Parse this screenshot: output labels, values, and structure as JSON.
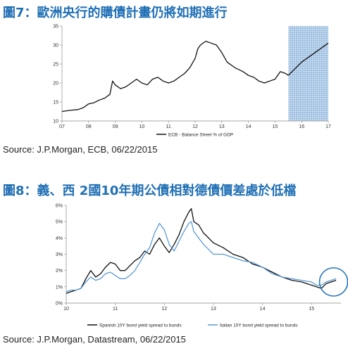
{
  "titles": {
    "chart1": "圖7：歐洲央行的購債計畫仍將如期進行",
    "chart2": "圖8：義、西 2國10年期公債相對德債價差處於低檔"
  },
  "sources": {
    "chart1": "Source: J.P.Morgan, ECB, 06/22/2015",
    "chart2": "Source: J.P.Morgan, Datastream, 06/22/2015"
  },
  "colors": {
    "title": "#1f6fb5",
    "line_black": "#111111",
    "line_blue": "#5b9bd5",
    "forecast_shade": "#9dbfe3",
    "circle": "#2b78b8"
  },
  "chart_data": [
    {
      "type": "line",
      "title": "",
      "xlabel": "",
      "ylabel": "",
      "x_ticks": [
        "07",
        "08",
        "09",
        "10",
        "11",
        "12",
        "13",
        "14",
        "15",
        "16",
        "17"
      ],
      "y_ticks": [
        "10",
        "15",
        "20",
        "25",
        "30",
        "35"
      ],
      "xlim": [
        2007.0,
        2017.0
      ],
      "ylim": [
        10,
        35
      ],
      "grid": false,
      "forecast_shaded_from": 2015.5,
      "legend": {
        "placement": "bottom",
        "entries": [
          "ECB - Balance Sheet % of GDP"
        ]
      },
      "series": [
        {
          "name": "ECB - Balance Sheet % of GDP",
          "style": "solid",
          "x": [
            2007.0,
            2007.3,
            2007.6,
            2007.8,
            2008.0,
            2008.2,
            2008.4,
            2008.6,
            2008.8,
            2008.9,
            2009.0,
            2009.2,
            2009.4,
            2009.6,
            2009.8,
            2010.0,
            2010.2,
            2010.4,
            2010.6,
            2010.8,
            2011.0,
            2011.2,
            2011.4,
            2011.6,
            2011.8,
            2012.0,
            2012.1,
            2012.2,
            2012.4,
            2012.6,
            2012.8,
            2013.0,
            2013.2,
            2013.5,
            2013.8,
            2014.0,
            2014.2,
            2014.4,
            2014.6,
            2014.8,
            2015.0,
            2015.2,
            2015.4,
            2015.5
          ],
          "values": [
            12.5,
            12.8,
            13.0,
            13.5,
            14.5,
            14.8,
            15.5,
            16.0,
            17.0,
            20.5,
            19.5,
            18.5,
            19.0,
            20.0,
            21.0,
            20.0,
            19.5,
            21.0,
            21.5,
            20.5,
            20.0,
            20.5,
            21.5,
            22.5,
            24.0,
            26.5,
            29.0,
            30.0,
            31.0,
            30.5,
            30.0,
            28.0,
            25.5,
            24.0,
            23.0,
            22.0,
            21.5,
            20.5,
            20.0,
            20.5,
            21.0,
            23.0,
            22.5,
            22.0
          ]
        },
        {
          "name": "",
          "style": "forecast",
          "x": [
            2015.5,
            2016.0,
            2016.5,
            2017.0
          ],
          "values": [
            22.0,
            25.5,
            28.0,
            30.5
          ]
        }
      ]
    },
    {
      "type": "line",
      "title": "",
      "xlabel": "",
      "ylabel": "",
      "x_ticks": [
        "10",
        "11",
        "12",
        "13",
        "14",
        "15"
      ],
      "y_ticks": [
        "0%",
        "1%",
        "2%",
        "3%",
        "4%",
        "5%",
        "6%"
      ],
      "xlim": [
        2010.0,
        2015.6
      ],
      "ylim": [
        0,
        6
      ],
      "grid": false,
      "annotation": "circle highlighting the most recent period (mid 2015)",
      "legend": {
        "placement": "bottom",
        "entries": [
          "Spanish 10Y bond yield spread to bunds",
          "Italian 10Y bond yield spread to bunds"
        ]
      },
      "series": [
        {
          "name": "Spanish 10Y bond yield spread to bunds",
          "x": [
            2010.0,
            2010.1,
            2010.2,
            2010.3,
            2010.4,
            2010.5,
            2010.6,
            2010.7,
            2010.8,
            2010.9,
            2011.0,
            2011.1,
            2011.2,
            2011.3,
            2011.4,
            2011.5,
            2011.6,
            2011.7,
            2011.8,
            2011.9,
            2012.0,
            2012.1,
            2012.2,
            2012.3,
            2012.4,
            2012.5,
            2012.55,
            2012.6,
            2012.7,
            2012.8,
            2012.9,
            2013.0,
            2013.2,
            2013.4,
            2013.6,
            2013.8,
            2014.0,
            2014.2,
            2014.4,
            2014.6,
            2014.8,
            2015.0,
            2015.1,
            2015.2,
            2015.3,
            2015.4,
            2015.5
          ],
          "values": [
            0.6,
            0.7,
            0.8,
            0.9,
            1.5,
            2.0,
            1.6,
            1.8,
            2.2,
            2.5,
            2.4,
            2.0,
            2.0,
            2.3,
            2.6,
            2.8,
            3.2,
            3.0,
            3.6,
            4.0,
            3.5,
            3.1,
            3.6,
            4.2,
            5.0,
            5.6,
            5.8,
            5.0,
            4.8,
            4.3,
            4.0,
            3.7,
            3.4,
            3.0,
            2.8,
            2.4,
            2.2,
            1.9,
            1.6,
            1.4,
            1.3,
            1.1,
            1.0,
            0.9,
            1.2,
            1.3,
            1.4
          ]
        },
        {
          "name": "Italian 10Y bond yield spread to bunds",
          "x": [
            2010.0,
            2010.1,
            2010.2,
            2010.3,
            2010.4,
            2010.5,
            2010.6,
            2010.7,
            2010.8,
            2010.9,
            2011.0,
            2011.1,
            2011.2,
            2011.3,
            2011.4,
            2011.5,
            2011.6,
            2011.7,
            2011.8,
            2011.9,
            2012.0,
            2012.1,
            2012.2,
            2012.3,
            2012.4,
            2012.5,
            2012.55,
            2012.6,
            2012.7,
            2012.8,
            2012.9,
            2013.0,
            2013.2,
            2013.4,
            2013.6,
            2013.8,
            2014.0,
            2014.2,
            2014.4,
            2014.6,
            2014.8,
            2015.0,
            2015.1,
            2015.2,
            2015.3,
            2015.4,
            2015.5
          ],
          "values": [
            0.7,
            0.8,
            0.8,
            0.9,
            1.3,
            1.6,
            1.4,
            1.5,
            1.8,
            1.9,
            1.7,
            1.5,
            1.5,
            1.7,
            2.0,
            2.5,
            3.0,
            3.4,
            4.3,
            4.9,
            4.5,
            3.6,
            3.2,
            3.8,
            4.4,
            4.9,
            5.0,
            4.4,
            4.0,
            3.6,
            3.3,
            3.0,
            3.0,
            2.8,
            2.6,
            2.5,
            2.2,
            1.8,
            1.6,
            1.5,
            1.4,
            1.3,
            1.1,
            1.1,
            1.3,
            1.4,
            1.5
          ]
        }
      ]
    }
  ]
}
